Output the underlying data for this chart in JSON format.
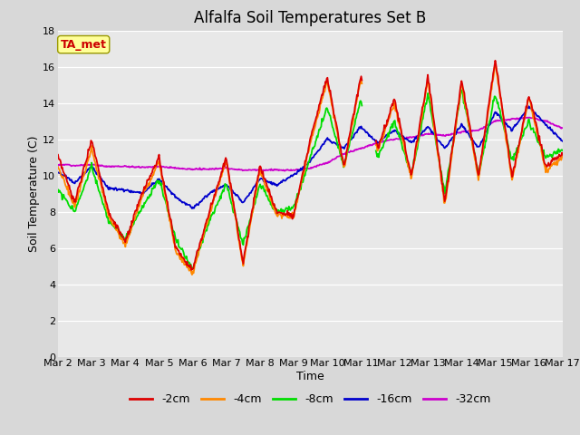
{
  "title": "Alfalfa Soil Temperatures Set B",
  "xlabel": "Time",
  "ylabel": "Soil Temperature (C)",
  "ylim": [
    0,
    18
  ],
  "yticks": [
    0,
    2,
    4,
    6,
    8,
    10,
    12,
    14,
    16,
    18
  ],
  "xtick_labels": [
    "Mar 2",
    "Mar 3",
    "Mar 4",
    "Mar 5",
    "Mar 6",
    "Mar 7",
    "Mar 8",
    "Mar 9",
    "Mar 10",
    "Mar 11",
    "Mar 12",
    "Mar 13",
    "Mar 14",
    "Mar 15",
    "Mar 16",
    "Mar 17"
  ],
  "colors": {
    "-2cm": "#dd0000",
    "-4cm": "#ff8800",
    "-8cm": "#00dd00",
    "-16cm": "#0000cc",
    "-32cm": "#cc00cc"
  },
  "linewidth": 1.3,
  "annotation_text": "TA_met",
  "annotation_color": "#cc0000",
  "annotation_bg": "#ffff99",
  "fig_bg": "#d8d8d8",
  "plot_bg": "#e8e8e8",
  "grid_color": "#ffffff",
  "title_fontsize": 12,
  "axis_fontsize": 9,
  "tick_fontsize": 8,
  "legend_fontsize": 9
}
